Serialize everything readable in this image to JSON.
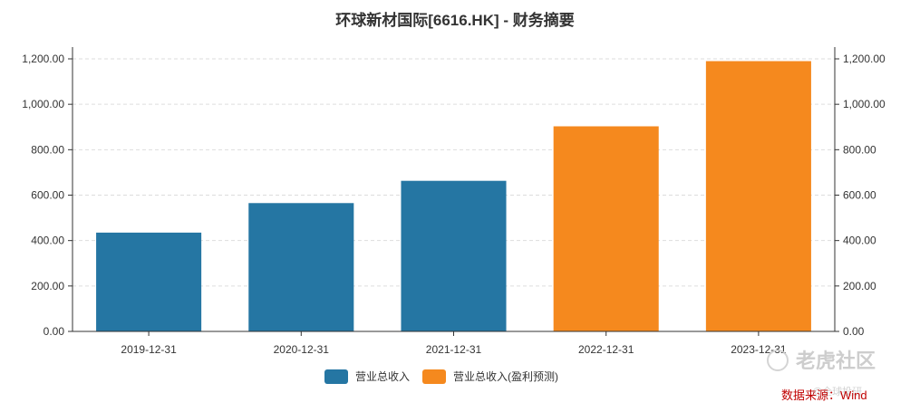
{
  "chart_data": {
    "type": "bar",
    "title": "环球新材国际[6616.HK] - 财务摘要",
    "categories": [
      "2019-12-31",
      "2020-12-31",
      "2021-12-31",
      "2022-12-31",
      "2023-12-31"
    ],
    "values": [
      435,
      565,
      663,
      903,
      1190
    ],
    "series": [
      {
        "name": "营业总收入",
        "color": "#2576a3",
        "categories": [
          "2019-12-31",
          "2020-12-31",
          "2021-12-31"
        ]
      },
      {
        "name": "营业总收入(盈利预测)",
        "color": "#f5891e",
        "categories": [
          "2022-12-31",
          "2023-12-31"
        ]
      }
    ],
    "ylim": [
      0,
      1200
    ],
    "yticks": [
      "0.00",
      "200.00",
      "400.00",
      "600.00",
      "800.00",
      "1,000.00",
      "1,200.00"
    ],
    "ytick_values": [
      0,
      200,
      400,
      600,
      800,
      1000,
      1200
    ],
    "grid": true,
    "legend_position": "bottom-center",
    "xlabel": "",
    "ylabel": ""
  },
  "footer": {
    "source": "数据来源：Wind",
    "watermark": "老虎社区",
    "watermark_sub": "@全球投研"
  }
}
